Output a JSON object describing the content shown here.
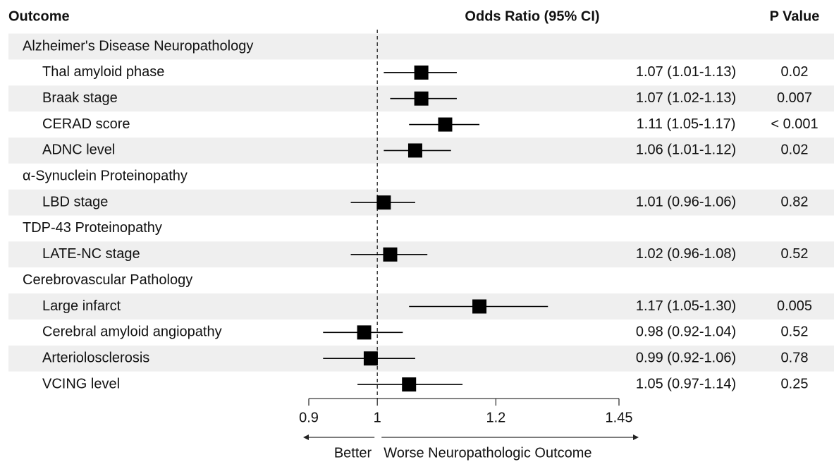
{
  "chart_data": {
    "type": "forest",
    "headers": {
      "outcome": "Outcome",
      "estimate": "Odds Ratio (95% CI)",
      "p": "P Value"
    },
    "xscale": "log",
    "xlim": [
      0.9,
      1.45
    ],
    "xticks": [
      0.9,
      1,
      1.2,
      1.45
    ],
    "reference": 1,
    "color": "#000000",
    "shade": "#efefef",
    "direction_left": "Better",
    "direction_right": "Worse Neuropathologic Outcome",
    "rows": [
      {
        "group": "Alzheimer's Disease Neuropathology"
      },
      {
        "label": "Thal amyloid phase",
        "or": 1.07,
        "lo": 1.01,
        "hi": 1.13,
        "ci_text": "1.07 (1.01-1.13)",
        "p": "0.02"
      },
      {
        "label": "Braak stage",
        "or": 1.07,
        "lo": 1.02,
        "hi": 1.13,
        "ci_text": "1.07 (1.02-1.13)",
        "p": "0.007"
      },
      {
        "label": "CERAD score",
        "or": 1.11,
        "lo": 1.05,
        "hi": 1.17,
        "ci_text": "1.11 (1.05-1.17)",
        "p": "< 0.001"
      },
      {
        "label": "ADNC level",
        "or": 1.06,
        "lo": 1.01,
        "hi": 1.12,
        "ci_text": "1.06 (1.01-1.12)",
        "p": "0.02"
      },
      {
        "group": "α-Synuclein Proteinopathy"
      },
      {
        "label": "LBD stage",
        "or": 1.01,
        "lo": 0.96,
        "hi": 1.06,
        "ci_text": "1.01 (0.96-1.06)",
        "p": "0.82"
      },
      {
        "group": "TDP-43 Proteinopathy"
      },
      {
        "label": "LATE-NC stage",
        "or": 1.02,
        "lo": 0.96,
        "hi": 1.08,
        "ci_text": "1.02 (0.96-1.08)",
        "p": "0.52"
      },
      {
        "group": "Cerebrovascular Pathology"
      },
      {
        "label": "Large infarct",
        "or": 1.17,
        "lo": 1.05,
        "hi": 1.3,
        "ci_text": "1.17 (1.05-1.30)",
        "p": "0.005"
      },
      {
        "label": "Cerebral amyloid angiopathy",
        "or": 0.98,
        "lo": 0.92,
        "hi": 1.04,
        "ci_text": "0.98 (0.92-1.04)",
        "p": "0.52"
      },
      {
        "label": "Arteriolosclerosis",
        "or": 0.99,
        "lo": 0.92,
        "hi": 1.06,
        "ci_text": "0.99 (0.92-1.06)",
        "p": "0.78"
      },
      {
        "label": "VCING level",
        "or": 1.05,
        "lo": 0.97,
        "hi": 1.14,
        "ci_text": "1.05 (0.97-1.14)",
        "p": "0.25"
      }
    ]
  }
}
